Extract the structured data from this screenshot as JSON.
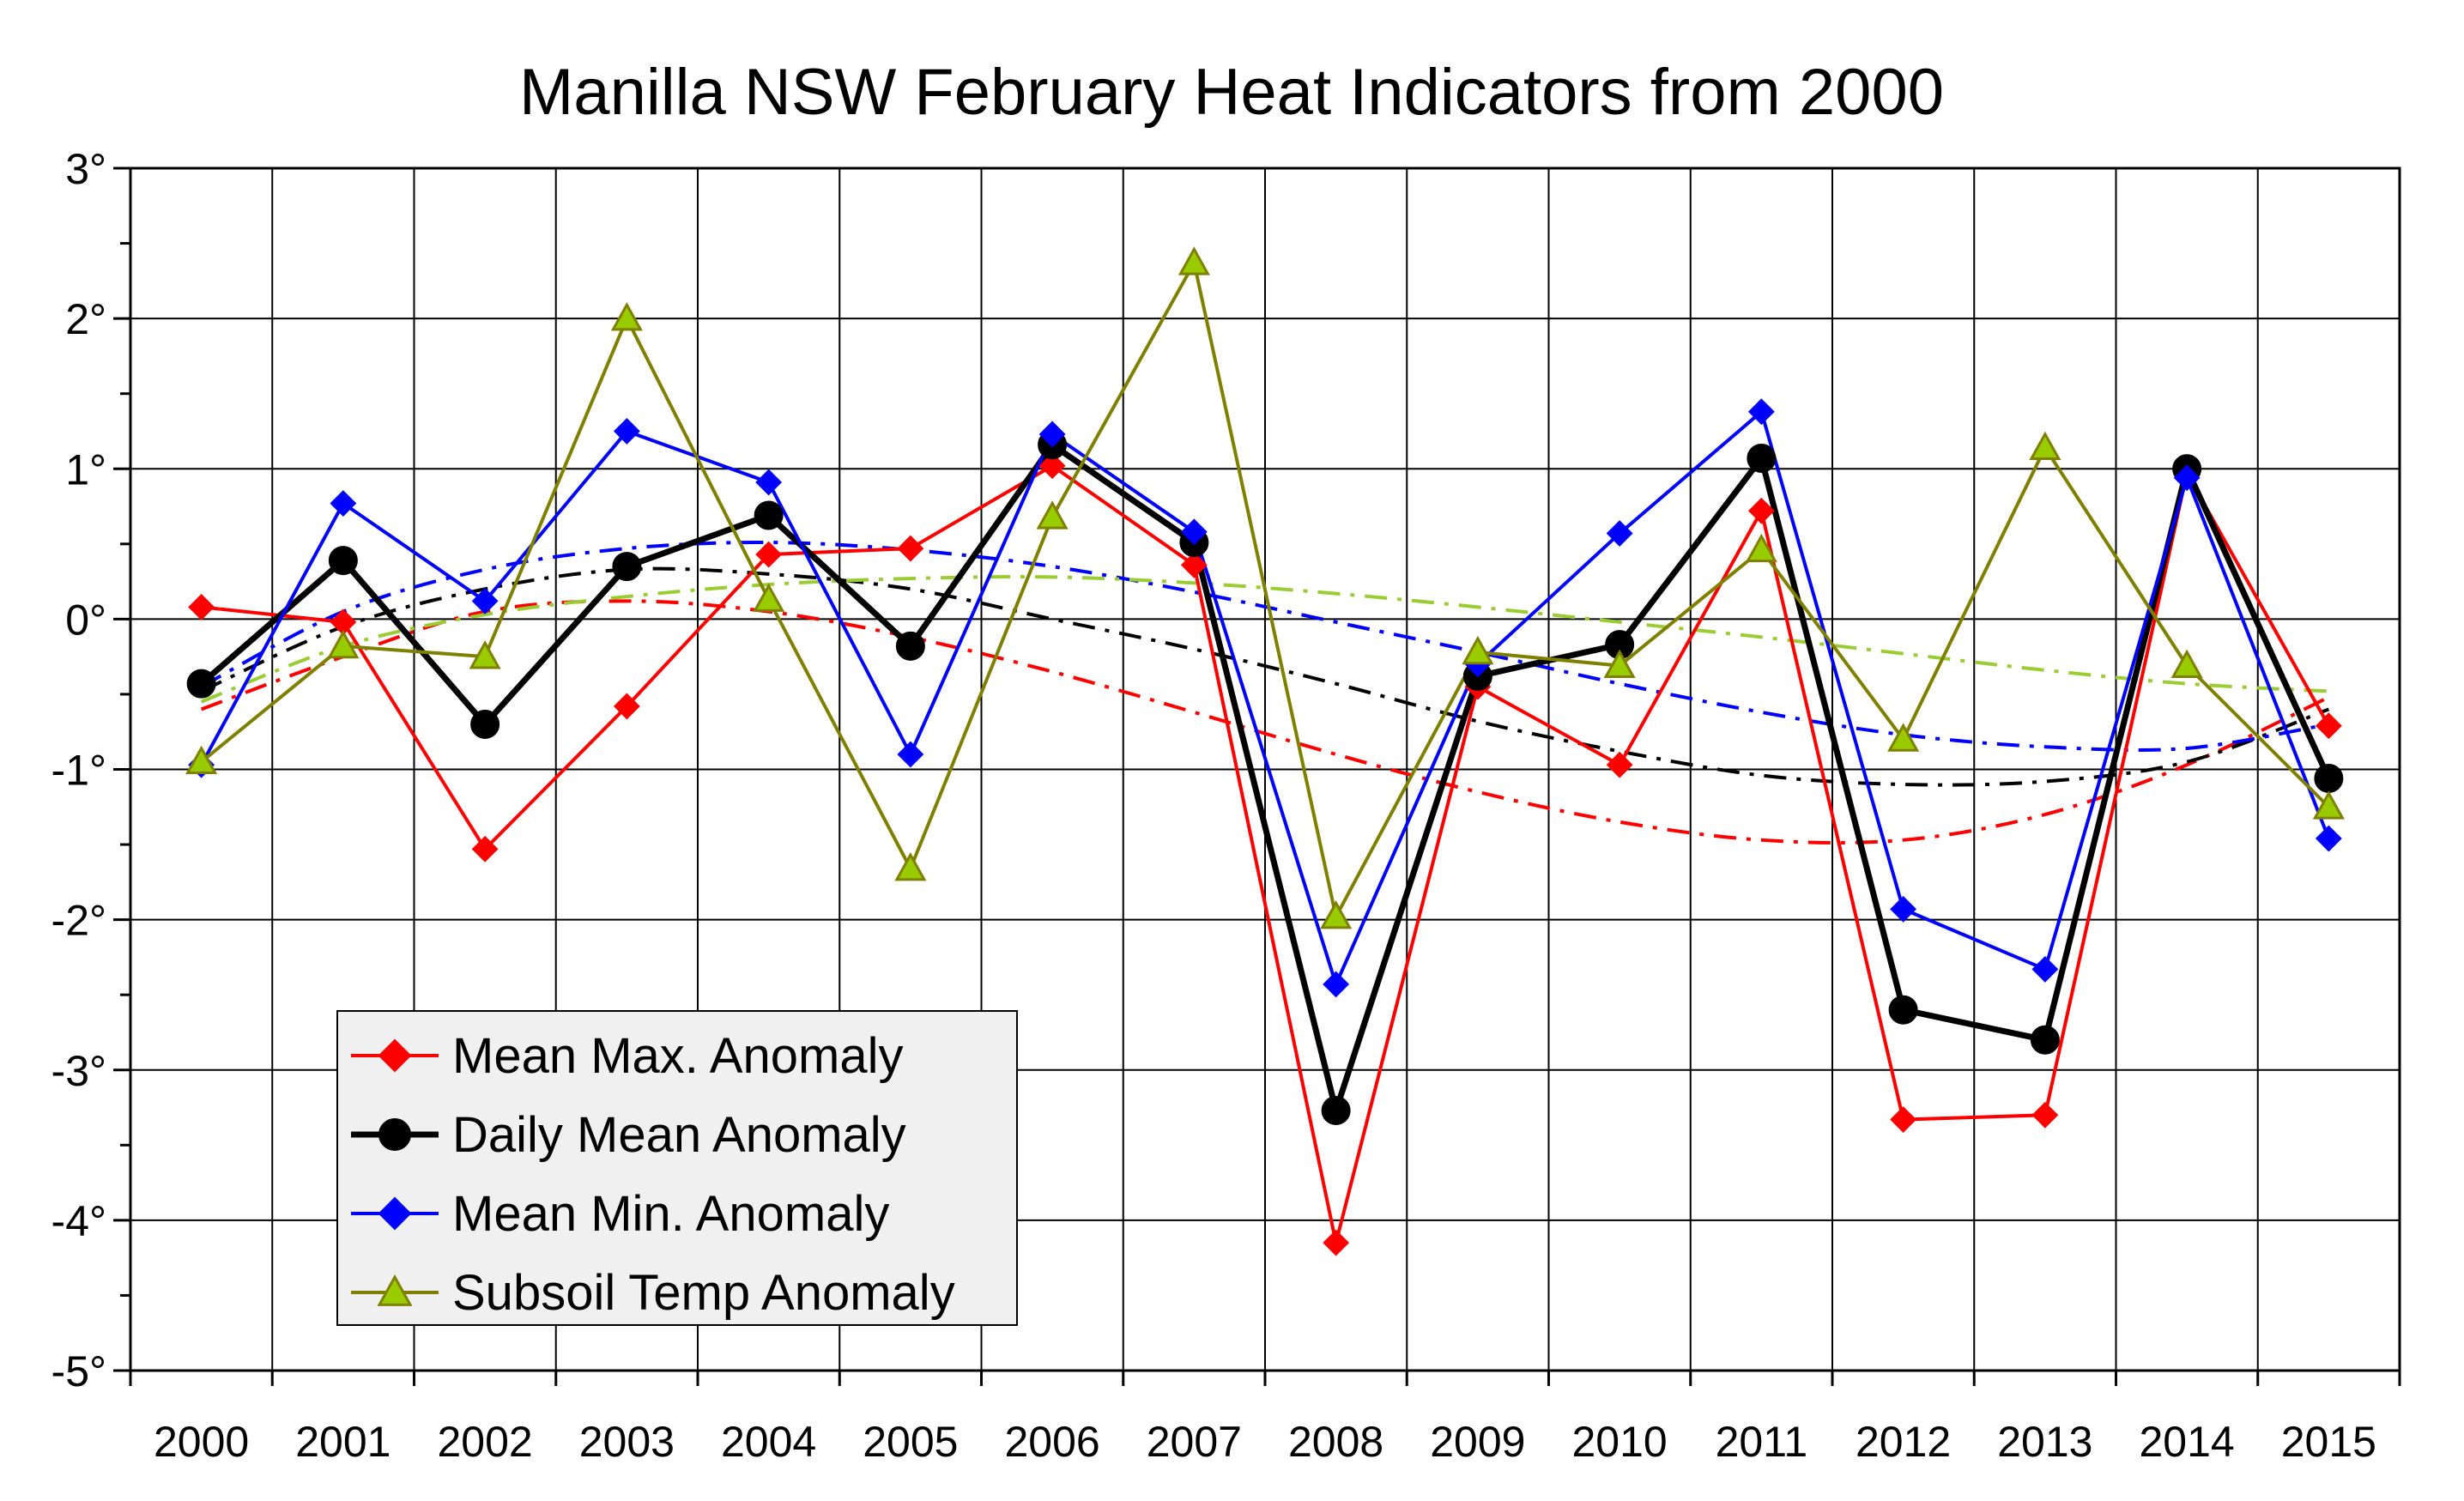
{
  "chart_data": {
    "type": "line",
    "title": "Manilla NSW February Heat Indicators from 2000",
    "xlabel": "",
    "ylabel": "",
    "categories": [
      "2000",
      "2001",
      "2002",
      "2003",
      "2004",
      "2005",
      "2006",
      "2007",
      "2008",
      "2009",
      "2010",
      "2011",
      "2012",
      "2013",
      "2014",
      "2015"
    ],
    "y_ticks": [
      "3°",
      "2°",
      "1°",
      "0°",
      "-1°",
      "-2°",
      "-3°",
      "-4°",
      "-5°"
    ],
    "ylim": [
      -5,
      3
    ],
    "grid": true,
    "legend_position": "bottom-left",
    "series": [
      {
        "name": "Mean Max. Anomaly",
        "color": "#ff0000",
        "marker": "diamond",
        "values": [
          0.08,
          -0.02,
          -1.53,
          -0.58,
          0.43,
          0.47,
          1.02,
          0.36,
          -4.15,
          -0.45,
          -0.97,
          0.72,
          -3.33,
          -3.3,
          0.97,
          -0.71
        ],
        "trend": [
          -0.6,
          -0.25,
          0.05,
          0.12,
          0.05,
          -0.12,
          -0.35,
          -0.62,
          -0.9,
          -1.15,
          -1.35,
          -1.47,
          -1.47,
          -1.3,
          -0.97,
          -0.52
        ]
      },
      {
        "name": "Daily Mean Anomaly",
        "color": "#000000",
        "marker": "circle",
        "values": [
          -0.43,
          0.39,
          -0.7,
          0.35,
          0.69,
          -0.18,
          1.16,
          0.51,
          -3.27,
          -0.38,
          -0.17,
          1.07,
          -2.6,
          -2.8,
          1.0,
          -1.06
        ],
        "trend": [
          -0.48,
          -0.05,
          0.2,
          0.33,
          0.3,
          0.2,
          0.0,
          -0.2,
          -0.43,
          -0.68,
          -0.88,
          -1.04,
          -1.1,
          -1.08,
          -0.95,
          -0.6
        ]
      },
      {
        "name": "Mean Min. Anomaly",
        "color": "#0000ff",
        "marker": "diamond",
        "values": [
          -0.97,
          0.77,
          0.12,
          1.25,
          0.91,
          -0.9,
          1.23,
          0.58,
          -2.43,
          -0.3,
          0.57,
          1.38,
          -1.93,
          -2.33,
          0.94,
          -1.46
        ],
        "trend": [
          -0.45,
          0.05,
          0.33,
          0.47,
          0.51,
          0.46,
          0.35,
          0.18,
          -0.02,
          -0.22,
          -0.43,
          -0.62,
          -0.77,
          -0.85,
          -0.86,
          -0.7
        ]
      },
      {
        "name": "Subsoil Temp Anomaly",
        "color": "#808000",
        "marker": "triangle",
        "values": [
          -0.95,
          -0.18,
          -0.25,
          2.0,
          0.13,
          -1.66,
          0.68,
          2.37,
          -1.98,
          -0.22,
          -0.31,
          0.46,
          -0.8,
          1.14,
          -0.31,
          -1.25
        ],
        "trend": [
          -0.55,
          -0.18,
          0.03,
          0.15,
          0.23,
          0.27,
          0.28,
          0.24,
          0.17,
          0.08,
          -0.02,
          -0.12,
          -0.23,
          -0.34,
          -0.43,
          -0.48
        ]
      }
    ]
  }
}
